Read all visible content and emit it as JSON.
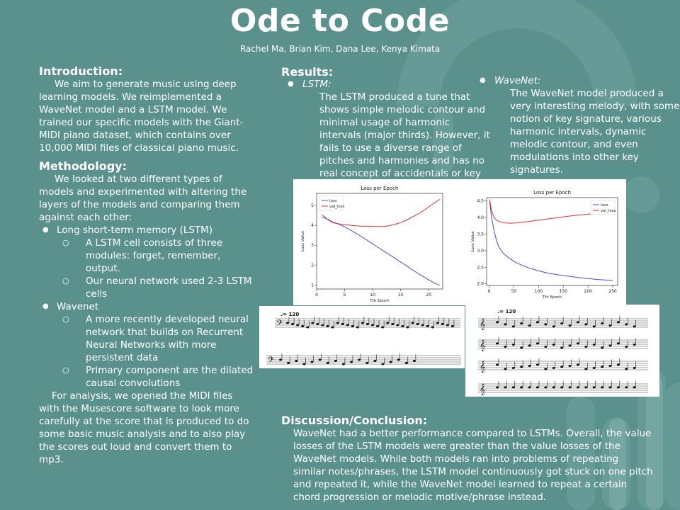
{
  "title": "Ode to Code",
  "authors": "Rachel Ma, Brian Kim, Dana Lee, Kenya Kimata",
  "introduction": {
    "heading": "Introduction:",
    "text": "We aim to generate music using deep learning models. We reimplemented a WaveNet model and a LSTM model. We trained our specific models with the Giant-MIDI piano dataset, which contains over 10,000 MIDI files of classical piano music."
  },
  "methodology": {
    "heading": "Methodology:",
    "text": "We looked at two different types of models and experimented with altering the layers of the models and comparing them against each other:",
    "items": [
      {
        "label": "Long short-term memory (LSTM)",
        "sub": [
          "A LSTM cell consists of three modules: forget, remember, output.",
          "Our neural network used 2-3 LSTM cells"
        ]
      },
      {
        "label": "Wavenet",
        "sub": [
          "A more recently developed neural network that builds on Recurrent Neural Networks with more persistent data",
          "Primary component are the dilated causal convolutions"
        ]
      }
    ],
    "analysis": "For analysis, we opened the MIDI files with the Musescore software to look more carefully at the score that is produced to do some basic music analysis and to also play the scores out loud and convert them to mp3."
  },
  "results": {
    "heading": "Results:",
    "lstm": {
      "label": "LSTM:",
      "text": "The LSTM produced a tune that shows simple melodic contour and minimal usage of harmonic intervals (major thirds). However, it fails to use a diverse range of pitches and harmonies and has no real concept of accidentals or key signature."
    },
    "wavenet": {
      "label": "WaveNet:",
      "text": "The WaveNet model produced a very interesting melody, with some notion of key signature, various harmonic intervals, dynamic melodic contour, and even modulations into other key signatures."
    }
  },
  "chart_data": [
    {
      "type": "line",
      "title": "Loss per Epoch",
      "xlabel": "Tth Epoch",
      "ylabel": "Loss Value",
      "xlim": [
        0,
        22.5
      ],
      "ylim": [
        0.8,
        5.6
      ],
      "xticks": [
        0,
        5,
        10,
        15,
        20
      ],
      "yticks": [
        1,
        2,
        3,
        4,
        5
      ],
      "legend": "top-left",
      "series": [
        {
          "name": "loss",
          "color": "#4a4adf",
          "x": [
            1,
            2,
            3,
            4,
            5,
            6,
            7,
            8,
            9,
            10,
            11,
            12,
            13,
            14,
            15,
            16,
            17,
            18,
            19,
            20,
            21,
            22
          ],
          "y": [
            4.42,
            4.3,
            4.15,
            4.05,
            3.92,
            3.77,
            3.6,
            3.43,
            3.25,
            3.07,
            2.88,
            2.7,
            2.52,
            2.34,
            2.15,
            1.97,
            1.78,
            1.6,
            1.43,
            1.26,
            1.1,
            0.98
          ]
        },
        {
          "name": "val_loss",
          "color": "#e03030",
          "x": [
            1,
            2,
            3,
            4,
            5,
            6,
            7,
            8,
            9,
            10,
            11,
            12,
            13,
            14,
            15,
            16,
            17,
            18,
            19,
            20,
            21,
            22
          ],
          "y": [
            4.52,
            4.28,
            4.12,
            4.07,
            4.03,
            4.0,
            3.97,
            3.95,
            3.95,
            3.94,
            3.94,
            3.94,
            3.98,
            4.05,
            4.13,
            4.25,
            4.4,
            4.55,
            4.72,
            4.92,
            5.12,
            5.3
          ]
        }
      ]
    },
    {
      "type": "line",
      "title": "Loss per Epoch",
      "xlabel": "Tth Epoch",
      "ylabel": "Loss Value",
      "xlim": [
        -5,
        260
      ],
      "ylim": [
        1.95,
        4.6
      ],
      "xticks": [
        0,
        50,
        100,
        150,
        200,
        250
      ],
      "yticks": [
        2.0,
        2.5,
        3.0,
        3.5,
        4.0,
        4.5
      ],
      "legend": "top-right",
      "series": [
        {
          "name": "loss",
          "color": "#4a4adf",
          "x": [
            1,
            5,
            10,
            15,
            20,
            30,
            40,
            50,
            60,
            80,
            100,
            120,
            140,
            160,
            180,
            200,
            220,
            240,
            250
          ],
          "y": [
            4.5,
            4.0,
            3.6,
            3.3,
            3.1,
            2.9,
            2.78,
            2.68,
            2.6,
            2.48,
            2.39,
            2.32,
            2.27,
            2.23,
            2.19,
            2.16,
            2.13,
            2.11,
            2.1
          ]
        },
        {
          "name": "val_loss",
          "color": "#e03030",
          "x": [
            1,
            5,
            10,
            15,
            20,
            30,
            40,
            50,
            60,
            80,
            100,
            120,
            140,
            160,
            180,
            200,
            220,
            240,
            250
          ],
          "y": [
            4.55,
            4.2,
            4.0,
            3.92,
            3.88,
            3.84,
            3.83,
            3.83,
            3.85,
            3.88,
            3.92,
            3.96,
            4.0,
            4.04,
            4.07,
            4.1,
            4.13,
            4.17,
            4.19
          ]
        }
      ]
    }
  ],
  "score_tempo": "♩= 120",
  "discussion": {
    "heading": "Discussion/Conclusion:",
    "text": "WaveNet had a better performance compared to LSTMs. Overall, the value losses of the LSTM models were greater than the value losses of the WaveNet models. While both models ran into problems of repeating similar notes/phrases, the LSTM model continuously got stuck on one pitch and repeated it, while the WaveNet model learned to repeat a certain chord progression or melodic motive/phrase instead."
  }
}
